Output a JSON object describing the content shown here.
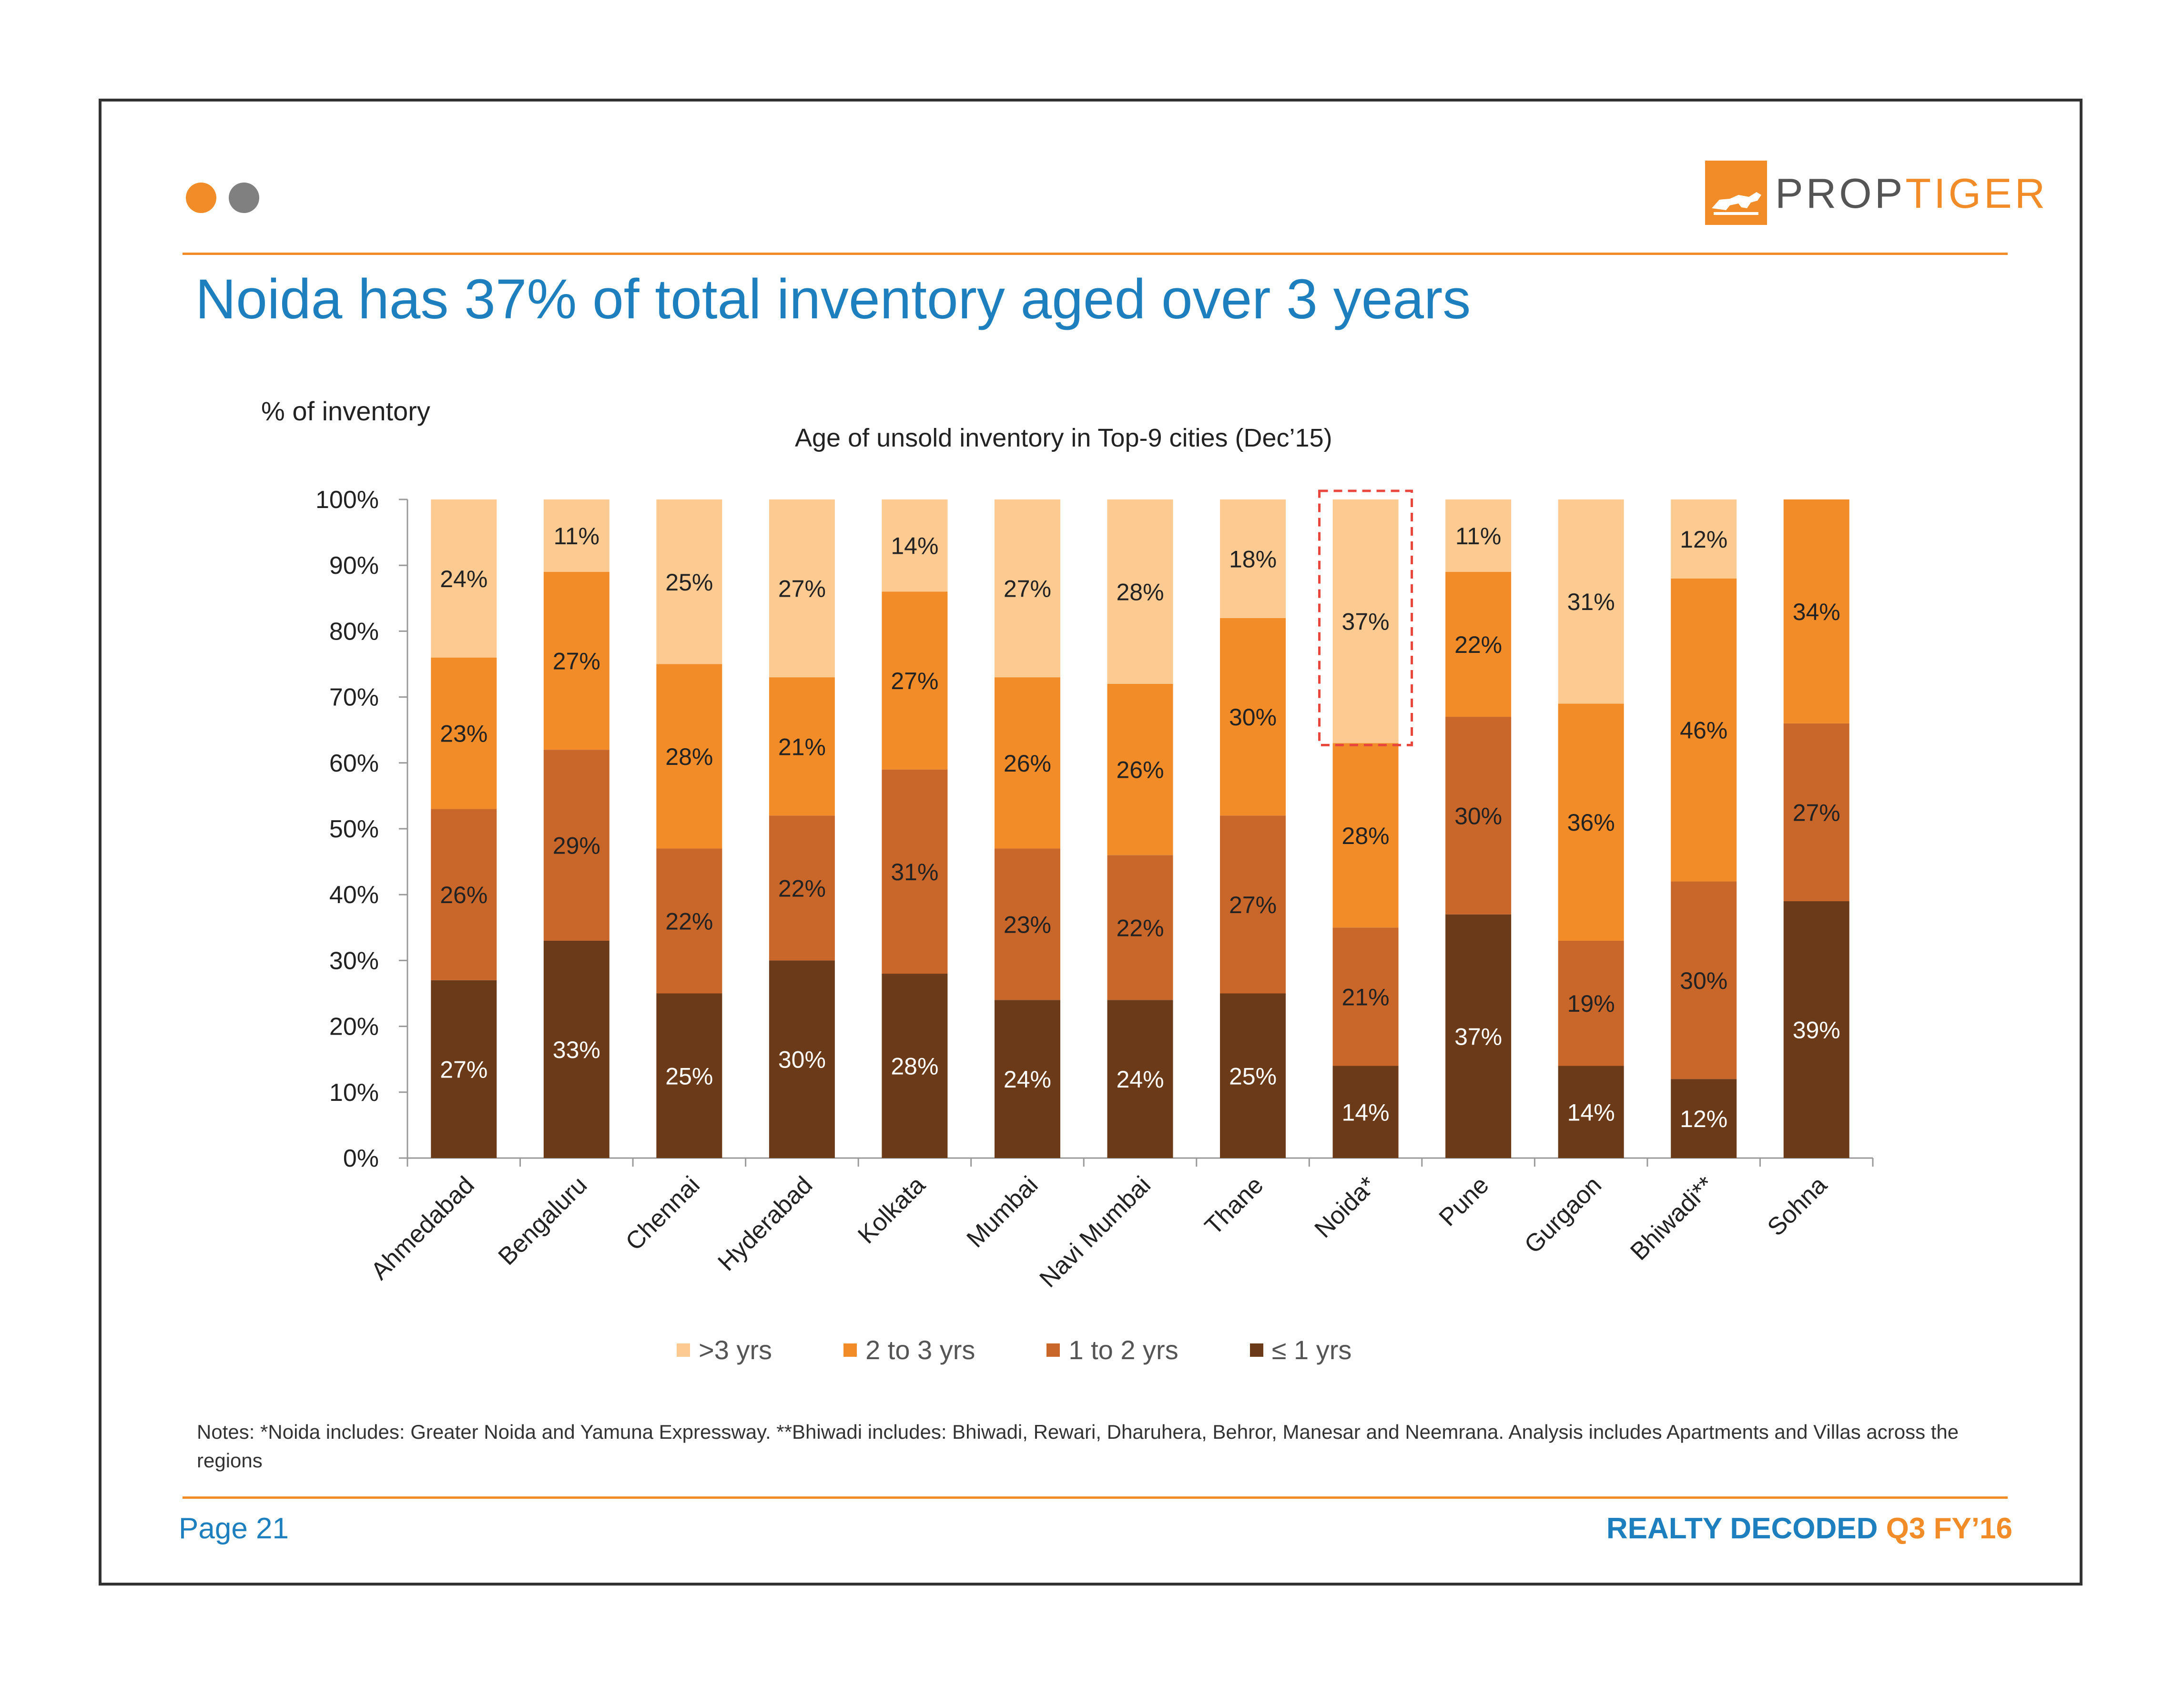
{
  "header": {
    "title": "Noida has 37% of total inventory aged over 3 years",
    "logo_text_prop": "PROP",
    "logo_text_tiger": "TIGER",
    "dots": [
      "#f28c28",
      "#808080"
    ]
  },
  "colors": {
    "accent": "#f28c28",
    "title_blue": "#1d7fbd",
    "gt3": "#fdcb92",
    "y2to3": "#f28c28",
    "y1to2": "#c9662a",
    "le1": "#6b3a18",
    "highlight": "#e8453c"
  },
  "chart_data": {
    "type": "bar",
    "stacked": true,
    "title": "Age of unsold inventory in Top-9 cities (Dec’15)",
    "ylabel": "% of inventory",
    "xlabel": "",
    "ylim": [
      0,
      100
    ],
    "yticks": [
      "0%",
      "10%",
      "20%",
      "30%",
      "40%",
      "50%",
      "60%",
      "70%",
      "80%",
      "90%",
      "100%"
    ],
    "categories": [
      "Ahmedabad",
      "Bengaluru",
      "Chennai",
      "Hyderabad",
      "Kolkata",
      "Mumbai",
      "Navi Mumbai",
      "Thane",
      "Noida*",
      "Pune",
      "Gurgaon",
      "Bhiwadi**",
      "Sohna"
    ],
    "series": [
      {
        "name": "≤ 1 yrs",
        "values": [
          27,
          33,
          25,
          30,
          28,
          24,
          24,
          25,
          14,
          37,
          14,
          12,
          39
        ]
      },
      {
        "name": "1 to 2 yrs",
        "values": [
          26,
          29,
          22,
          22,
          31,
          23,
          22,
          27,
          21,
          30,
          19,
          30,
          27
        ]
      },
      {
        "name": "2 to 3 yrs",
        "values": [
          23,
          27,
          28,
          21,
          27,
          26,
          26,
          30,
          28,
          22,
          36,
          46,
          34
        ]
      },
      {
        "name": ">3 yrs",
        "values": [
          24,
          11,
          25,
          27,
          14,
          27,
          28,
          18,
          37,
          11,
          31,
          12,
          0
        ]
      }
    ],
    "highlight": {
      "category": "Noida*",
      "series": ">3 yrs"
    },
    "legend": [
      ">3 yrs",
      "2 to 3 yrs",
      "1 to 2 yrs",
      "≤ 1 yrs"
    ],
    "legend_position": "bottom",
    "grid": false
  },
  "notes": "Notes: *Noida includes: Greater Noida and Yamuna Expressway. **Bhiwadi includes: Bhiwadi, Rewari, Dharuhera, Behror, Manesar and Neemrana. Analysis includes Apartments and Villas across the regions",
  "footer": {
    "page": "Page 21",
    "brand": "REALTY DECODED",
    "edition": "Q3 FY’16"
  }
}
